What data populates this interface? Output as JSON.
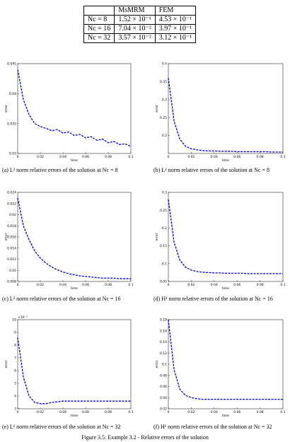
{
  "table": {
    "header": [
      "MsMRM",
      "FEM"
    ],
    "rows": [
      [
        "Nc = 8",
        "1.52 × 10⁻¹",
        "4.53 × 10⁻¹"
      ],
      [
        "Nc = 16",
        "7.04 × 10⁻²",
        "3.97 × 10⁻¹"
      ],
      [
        "Nc = 32",
        "3.57 × 10⁻²",
        "3.12 × 10⁻¹"
      ]
    ]
  },
  "chart_data": [
    {
      "type": "line",
      "caption": "(a) L² norm relative errors of the solution at Nc = 8",
      "xlabel": "time",
      "ylabel": "error",
      "x": [
        0,
        0.005,
        0.01,
        0.015,
        0.02,
        0.025,
        0.03,
        0.035,
        0.04,
        0.045,
        0.05,
        0.055,
        0.06,
        0.065,
        0.07,
        0.075,
        0.08,
        0.085,
        0.09,
        0.095,
        0.1
      ],
      "series": [
        {
          "color": "#0000cc",
          "values": [
            0.044,
            0.039,
            0.0365,
            0.035,
            0.0345,
            0.0342,
            0.0338,
            0.034,
            0.0334,
            0.0336,
            0.033,
            0.0332,
            0.0326,
            0.0328,
            0.0322,
            0.0324,
            0.0318,
            0.032,
            0.0315,
            0.0316,
            0.0312
          ]
        }
      ],
      "xlim": [
        0,
        0.1
      ],
      "xticks": [
        0,
        0.02,
        0.04,
        0.06,
        0.08,
        0.1
      ],
      "ylim": [
        0.03,
        0.045
      ],
      "yticks": [
        0.03,
        0.035,
        0.04,
        0.045
      ]
    },
    {
      "type": "line",
      "caption": "(b) L² norm relative errors of the solution at Nc = 8",
      "xlabel": "time",
      "ylabel": "error",
      "x": [
        0,
        0.005,
        0.01,
        0.015,
        0.02,
        0.025,
        0.03,
        0.035,
        0.04,
        0.045,
        0.05,
        0.055,
        0.06,
        0.065,
        0.07,
        0.075,
        0.08,
        0.085,
        0.09,
        0.095,
        0.1
      ],
      "series": [
        {
          "color": "#0000cc",
          "values": [
            0.36,
            0.24,
            0.19,
            0.17,
            0.163,
            0.16,
            0.158,
            0.157,
            0.157,
            0.156,
            0.156,
            0.156,
            0.155,
            0.155,
            0.155,
            0.155,
            0.155,
            0.155,
            0.154,
            0.154,
            0.154
          ]
        }
      ],
      "xlim": [
        0,
        0.1
      ],
      "xticks": [
        0,
        0.02,
        0.04,
        0.06,
        0.08,
        0.1
      ],
      "ylim": [
        0.15,
        0.4
      ],
      "yticks": [
        0.2,
        0.25,
        0.3,
        0.35,
        0.4
      ]
    },
    {
      "type": "line",
      "caption": "(c) L² norm relative errors of the solution at Nc = 16",
      "xlabel": "time",
      "ylabel": "error",
      "x": [
        0,
        0.005,
        0.01,
        0.015,
        0.02,
        0.025,
        0.03,
        0.035,
        0.04,
        0.045,
        0.05,
        0.055,
        0.06,
        0.065,
        0.07,
        0.075,
        0.08,
        0.085,
        0.09,
        0.095,
        0.1
      ],
      "series": [
        {
          "color": "#0000cc",
          "values": [
            0.023,
            0.018,
            0.0155,
            0.0135,
            0.0122,
            0.0113,
            0.0106,
            0.0101,
            0.0097,
            0.0094,
            0.0092,
            0.009,
            0.0089,
            0.0088,
            0.0087,
            0.0086,
            0.0086,
            0.0086,
            0.0085,
            0.0085,
            0.0085
          ]
        }
      ],
      "xlim": [
        0,
        0.1
      ],
      "xticks": [
        0,
        0.02,
        0.04,
        0.06,
        0.08,
        0.1
      ],
      "ylim": [
        0.008,
        0.024
      ],
      "yticks": [
        0.008,
        0.01,
        0.012,
        0.014,
        0.016,
        0.018,
        0.02,
        0.022,
        0.024
      ]
    },
    {
      "type": "line",
      "caption": "(d) H¹ norm relative errors of the solution at Nc = 16",
      "xlabel": "time",
      "ylabel": "error",
      "x": [
        0,
        0.005,
        0.01,
        0.015,
        0.02,
        0.025,
        0.03,
        0.035,
        0.04,
        0.045,
        0.05,
        0.055,
        0.06,
        0.065,
        0.07,
        0.075,
        0.08,
        0.085,
        0.09,
        0.095,
        0.1
      ],
      "series": [
        {
          "color": "#0000cc",
          "values": [
            0.28,
            0.16,
            0.11,
            0.09,
            0.082,
            0.078,
            0.076,
            0.075,
            0.074,
            0.074,
            0.073,
            0.073,
            0.073,
            0.073,
            0.072,
            0.072,
            0.072,
            0.072,
            0.072,
            0.072,
            0.072
          ]
        }
      ],
      "xlim": [
        0,
        0.1
      ],
      "xticks": [
        0,
        0.02,
        0.04,
        0.06,
        0.08,
        0.1
      ],
      "ylim": [
        0.05,
        0.3
      ],
      "yticks": [
        0.05,
        0.1,
        0.15,
        0.2,
        0.25,
        0.3
      ]
    },
    {
      "type": "line",
      "caption": "(e) L² norm relative errors of the solution at Nc = 32",
      "xlabel": "time",
      "ylabel": "error",
      "y_scale_label": "×10⁻³",
      "x": [
        0,
        0.005,
        0.01,
        0.015,
        0.02,
        0.025,
        0.03,
        0.035,
        0.04,
        0.045,
        0.05,
        0.055,
        0.06,
        0.065,
        0.07,
        0.075,
        0.08,
        0.085,
        0.09,
        0.095,
        0.1
      ],
      "series": [
        {
          "color": "#0000cc",
          "values": [
            8.6,
            5.5,
            4.0,
            3.5,
            3.4,
            3.4,
            3.5,
            3.55,
            3.6,
            3.6,
            3.6,
            3.6,
            3.6,
            3.6,
            3.6,
            3.6,
            3.6,
            3.6,
            3.6,
            3.6,
            3.6
          ]
        }
      ],
      "xlim": [
        0,
        0.1
      ],
      "xticks": [
        0,
        0.02,
        0.04,
        0.06,
        0.08,
        0.1
      ],
      "ylim": [
        3,
        10
      ],
      "yticks": [
        3,
        4,
        5,
        6,
        7,
        8,
        9,
        10
      ]
    },
    {
      "type": "line",
      "caption": "(f) H¹ norm relative errors of the solution at Nc = 32",
      "xlabel": "time",
      "ylabel": "error",
      "x": [
        0,
        0.005,
        0.01,
        0.015,
        0.02,
        0.025,
        0.03,
        0.035,
        0.04,
        0.045,
        0.05,
        0.055,
        0.06,
        0.065,
        0.07,
        0.075,
        0.08,
        0.085,
        0.09,
        0.095,
        0.1
      ],
      "series": [
        {
          "color": "#0000cc",
          "values": [
            0.18,
            0.09,
            0.055,
            0.044,
            0.04,
            0.038,
            0.037,
            0.037,
            0.037,
            0.037,
            0.037,
            0.037,
            0.037,
            0.037,
            0.037,
            0.037,
            0.037,
            0.037,
            0.037,
            0.037,
            0.037
          ]
        }
      ],
      "xlim": [
        0,
        0.1
      ],
      "xticks": [
        0,
        0.02,
        0.04,
        0.06,
        0.08,
        0.1
      ],
      "ylim": [
        0.02,
        0.18
      ],
      "yticks": [
        0.02,
        0.04,
        0.06,
        0.08,
        0.1,
        0.12,
        0.14,
        0.16,
        0.18
      ]
    }
  ],
  "figure_caption": "Figure 3.5: Example 3.2 - Relative errors of the solution"
}
